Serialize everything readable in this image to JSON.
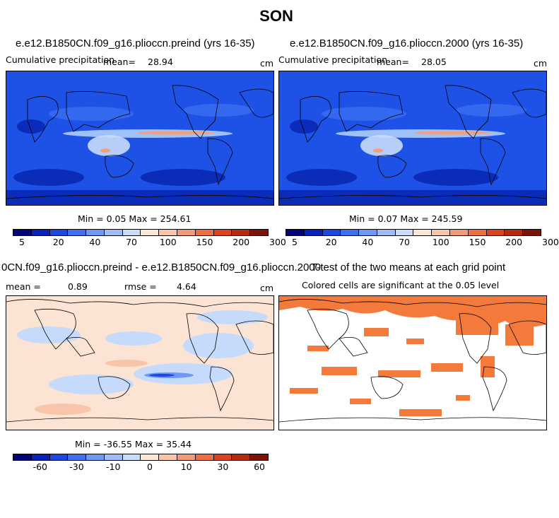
{
  "suptitle": "SON",
  "panels": {
    "top_left": {
      "title": "e.e12.B1850CN.f09_g16.plioccn.preind (yrs 16-35)",
      "left_label": "Cumulative precipitation",
      "mean_label": "mean=",
      "mean_value": "28.94",
      "units": "cm",
      "minmax": "Min =    0.05 Max = 254.61"
    },
    "top_right": {
      "title": "e.e12.B1850CN.f09_g16.plioccn.2000 (yrs 16-35)",
      "left_label": "Cumulative precipitation",
      "mean_label": "mean=",
      "mean_value": "28.05",
      "units": "cm",
      "minmax": "Min =    0.07 Max = 245.59"
    },
    "bottom_left": {
      "title": "0CN.f09_g16.plioccn.preind - e.e12.B1850CN.f09_g16.plioccn.2000",
      "mean_label": "mean =",
      "mean_value": "0.89",
      "rmse_label": "rmse =",
      "rmse_value": "4.64",
      "units": "cm",
      "minmax": "Min = -36.55 Max =  35.44"
    },
    "bottom_right": {
      "title": "T-test of the two means at each grid point",
      "subtitle": "Colored cells are significant at the 0.05 level"
    }
  },
  "colorbars": {
    "precip": {
      "colors": [
        "#03037a",
        "#0a22b8",
        "#1c48e0",
        "#3f6ef0",
        "#6f98f5",
        "#9fbcf8",
        "#c8dcfb",
        "#fbe6d8",
        "#f8c4aa",
        "#f59a78",
        "#ee6d45",
        "#dc4420",
        "#b82a10",
        "#7e1206"
      ],
      "ticks": [
        "5",
        "20",
        "40",
        "70",
        "100",
        "150",
        "200",
        "300"
      ]
    },
    "diff": {
      "colors": [
        "#03037a",
        "#0a22b8",
        "#1c48e0",
        "#3f6ef0",
        "#6f98f5",
        "#9fbcf8",
        "#c8dcfb",
        "#fbe6d8",
        "#f8c4aa",
        "#f59a78",
        "#ee6d45",
        "#dc4420",
        "#b82a10",
        "#7e1206"
      ],
      "ticks": [
        "-60",
        "-30",
        "-10",
        "0",
        "10",
        "30",
        "60"
      ]
    }
  },
  "colors": {
    "precip_ocean": "#1e52e6",
    "precip_dry": "#0a2cb8",
    "precip_wet": "#9fc0f8",
    "itcz": "#f5a07a",
    "diff_bg": "#fbe4d4",
    "diff_neg": "#c6dafb",
    "significant": "#f47a3c"
  }
}
